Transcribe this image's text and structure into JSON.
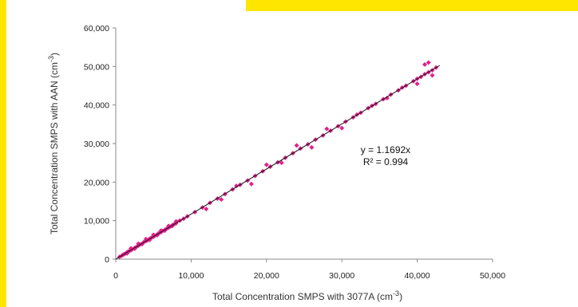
{
  "chart_data": {
    "type": "scatter",
    "title": "",
    "xlabel": "Total Concentration SMPS with 3077A (cm",
    "xlabel_sup": "-3",
    "xlabel_tail": ")",
    "ylabel": "Total Concentration SMPS with AAN (cm",
    "ylabel_sup": "-3",
    "ylabel_tail": ")",
    "xlim": [
      0,
      50000
    ],
    "ylim": [
      0,
      60000
    ],
    "x_ticks": [
      0,
      10000,
      20000,
      30000,
      40000,
      50000
    ],
    "x_tick_labels": [
      "0",
      "10,000",
      "20,000",
      "30,000",
      "40,000",
      "50,000"
    ],
    "y_ticks": [
      0,
      10000,
      20000,
      30000,
      40000,
      50000,
      60000
    ],
    "y_tick_labels": [
      "0",
      "10,000",
      "20,000",
      "30,000",
      "40,000",
      "50,000",
      "60,000"
    ],
    "grid": false,
    "series": [
      {
        "marker": "diamond",
        "color": "#e0218a",
        "points": [
          [
            500,
            600
          ],
          [
            800,
            900
          ],
          [
            1000,
            1200
          ],
          [
            1200,
            1350
          ],
          [
            1500,
            1800
          ],
          [
            1700,
            2000
          ],
          [
            2000,
            2300
          ],
          [
            2200,
            2600
          ],
          [
            2500,
            2900
          ],
          [
            2700,
            3100
          ],
          [
            3000,
            3500
          ],
          [
            3200,
            3800
          ],
          [
            3500,
            4000
          ],
          [
            3700,
            4400
          ],
          [
            4000,
            4700
          ],
          [
            4200,
            4900
          ],
          [
            4500,
            5300
          ],
          [
            4700,
            5500
          ],
          [
            5000,
            5800
          ],
          [
            5200,
            6100
          ],
          [
            5500,
            6400
          ],
          [
            5700,
            6700
          ],
          [
            6000,
            7000
          ],
          [
            6200,
            7300
          ],
          [
            6500,
            7600
          ],
          [
            6700,
            7800
          ],
          [
            7000,
            8200
          ],
          [
            7200,
            8400
          ],
          [
            7500,
            8800
          ],
          [
            7700,
            9000
          ],
          [
            8000,
            9300
          ],
          [
            8500,
            10000
          ],
          [
            9000,
            10500
          ],
          [
            9500,
            11100
          ],
          [
            1500,
            1500
          ],
          [
            2500,
            2700
          ],
          [
            3500,
            3900
          ],
          [
            4500,
            5000
          ],
          [
            5500,
            6200
          ],
          [
            6500,
            7400
          ],
          [
            7500,
            8600
          ],
          [
            2000,
            2800
          ],
          [
            3000,
            4000
          ],
          [
            4000,
            5200
          ],
          [
            5000,
            6300
          ],
          [
            6000,
            7400
          ],
          [
            7000,
            8600
          ],
          [
            8000,
            9800
          ],
          [
            10500,
            12200
          ],
          [
            11500,
            13400
          ],
          [
            12500,
            14600
          ],
          [
            13500,
            15700
          ],
          [
            14500,
            16900
          ],
          [
            15500,
            18100
          ],
          [
            16500,
            19300
          ],
          [
            17500,
            20400
          ],
          [
            18500,
            21600
          ],
          [
            19500,
            22800
          ],
          [
            20500,
            24000
          ],
          [
            21500,
            25100
          ],
          [
            22500,
            26300
          ],
          [
            23500,
            27500
          ],
          [
            24500,
            28700
          ],
          [
            25500,
            29800
          ],
          [
            26500,
            31000
          ],
          [
            27500,
            32100
          ],
          [
            28500,
            33300
          ],
          [
            29500,
            34500
          ],
          [
            30500,
            35700
          ],
          [
            31500,
            36800
          ],
          [
            32500,
            38000
          ],
          [
            33500,
            39200
          ],
          [
            34500,
            40300
          ],
          [
            35500,
            41500
          ],
          [
            36500,
            42700
          ],
          [
            37500,
            43800
          ],
          [
            38500,
            45000
          ],
          [
            39500,
            46200
          ],
          [
            40000,
            46800
          ],
          [
            40500,
            47300
          ],
          [
            41000,
            48000
          ],
          [
            41500,
            48500
          ],
          [
            42000,
            49000
          ],
          [
            42500,
            49700
          ],
          [
            12000,
            13000
          ],
          [
            14000,
            15500
          ],
          [
            16000,
            19000
          ],
          [
            18000,
            19500
          ],
          [
            20000,
            24500
          ],
          [
            22000,
            25000
          ],
          [
            24000,
            29500
          ],
          [
            26000,
            29000
          ],
          [
            28000,
            33800
          ],
          [
            30000,
            34000
          ],
          [
            32000,
            37500
          ],
          [
            34000,
            39800
          ],
          [
            36000,
            41800
          ],
          [
            38000,
            44500
          ],
          [
            40000,
            45500
          ],
          [
            41000,
            50500
          ],
          [
            41500,
            51000
          ],
          [
            42000,
            47700
          ]
        ]
      }
    ],
    "trendline": {
      "slope": 1.1692,
      "x_range": [
        0,
        43000
      ],
      "color": "#111111"
    },
    "annotations": {
      "equation": "y = 1.1692x",
      "r_squared": "R² = 0.994"
    }
  }
}
